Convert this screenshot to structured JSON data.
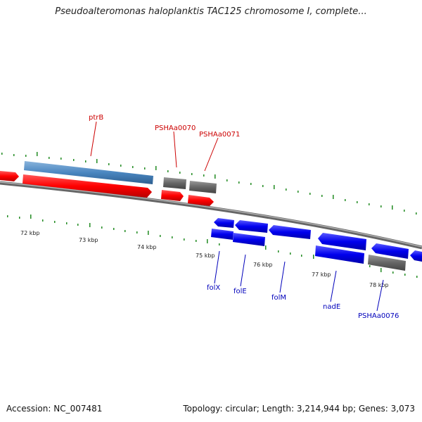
{
  "title": "Pseudoalteromonas haloplanktis TAC125 chromosome I, complete...",
  "footer": {
    "accession": "Accession: NC_007481",
    "summary": "Topology: circular; Length: 3,214,944 bp; Genes: 3,073"
  },
  "axis": {
    "ticks": [
      "72 kbp",
      "73 kbp",
      "74 kbp",
      "75 kbp",
      "76 kbp",
      "77 kbp",
      "78 kbp"
    ]
  },
  "genes": {
    "forward": [
      "ptrB",
      "PSHAa0070",
      "PSHAa0071"
    ],
    "reverse": [
      "folX",
      "folE",
      "folM",
      "nadE",
      "PSHAa0076"
    ]
  },
  "colors": {
    "cds_forward": "#ff0000",
    "cds_reverse": "#0000ee",
    "gene_block": "#4a86c0",
    "gene_grey": "#666666",
    "backbone": "#777777",
    "gc_tick": "#228b22"
  }
}
